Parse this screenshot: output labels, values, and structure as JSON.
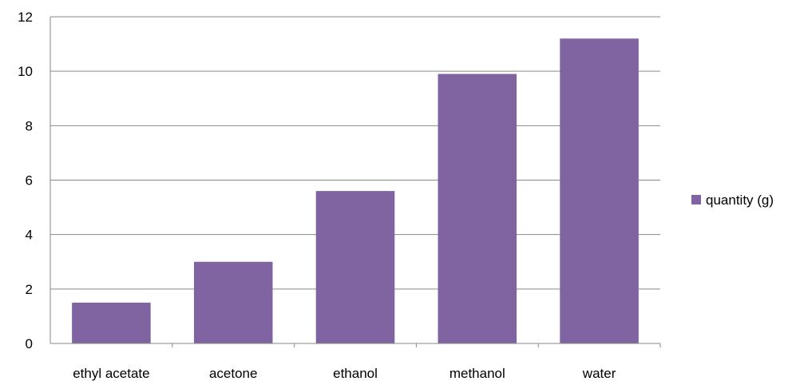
{
  "chart_data": {
    "type": "bar",
    "categories": [
      "ethyl acetate",
      "acetone",
      "ethanol",
      "methanol",
      "water"
    ],
    "series": [
      {
        "name": "quantity (g)",
        "values": [
          1.5,
          3.0,
          5.6,
          9.9,
          11.2
        ],
        "color": "#8064a2"
      }
    ],
    "yticks": [
      "0",
      "2",
      "4",
      "6",
      "8",
      "10",
      "12"
    ],
    "ylim": [
      0,
      12
    ],
    "grid": true,
    "legend_position": "right"
  }
}
